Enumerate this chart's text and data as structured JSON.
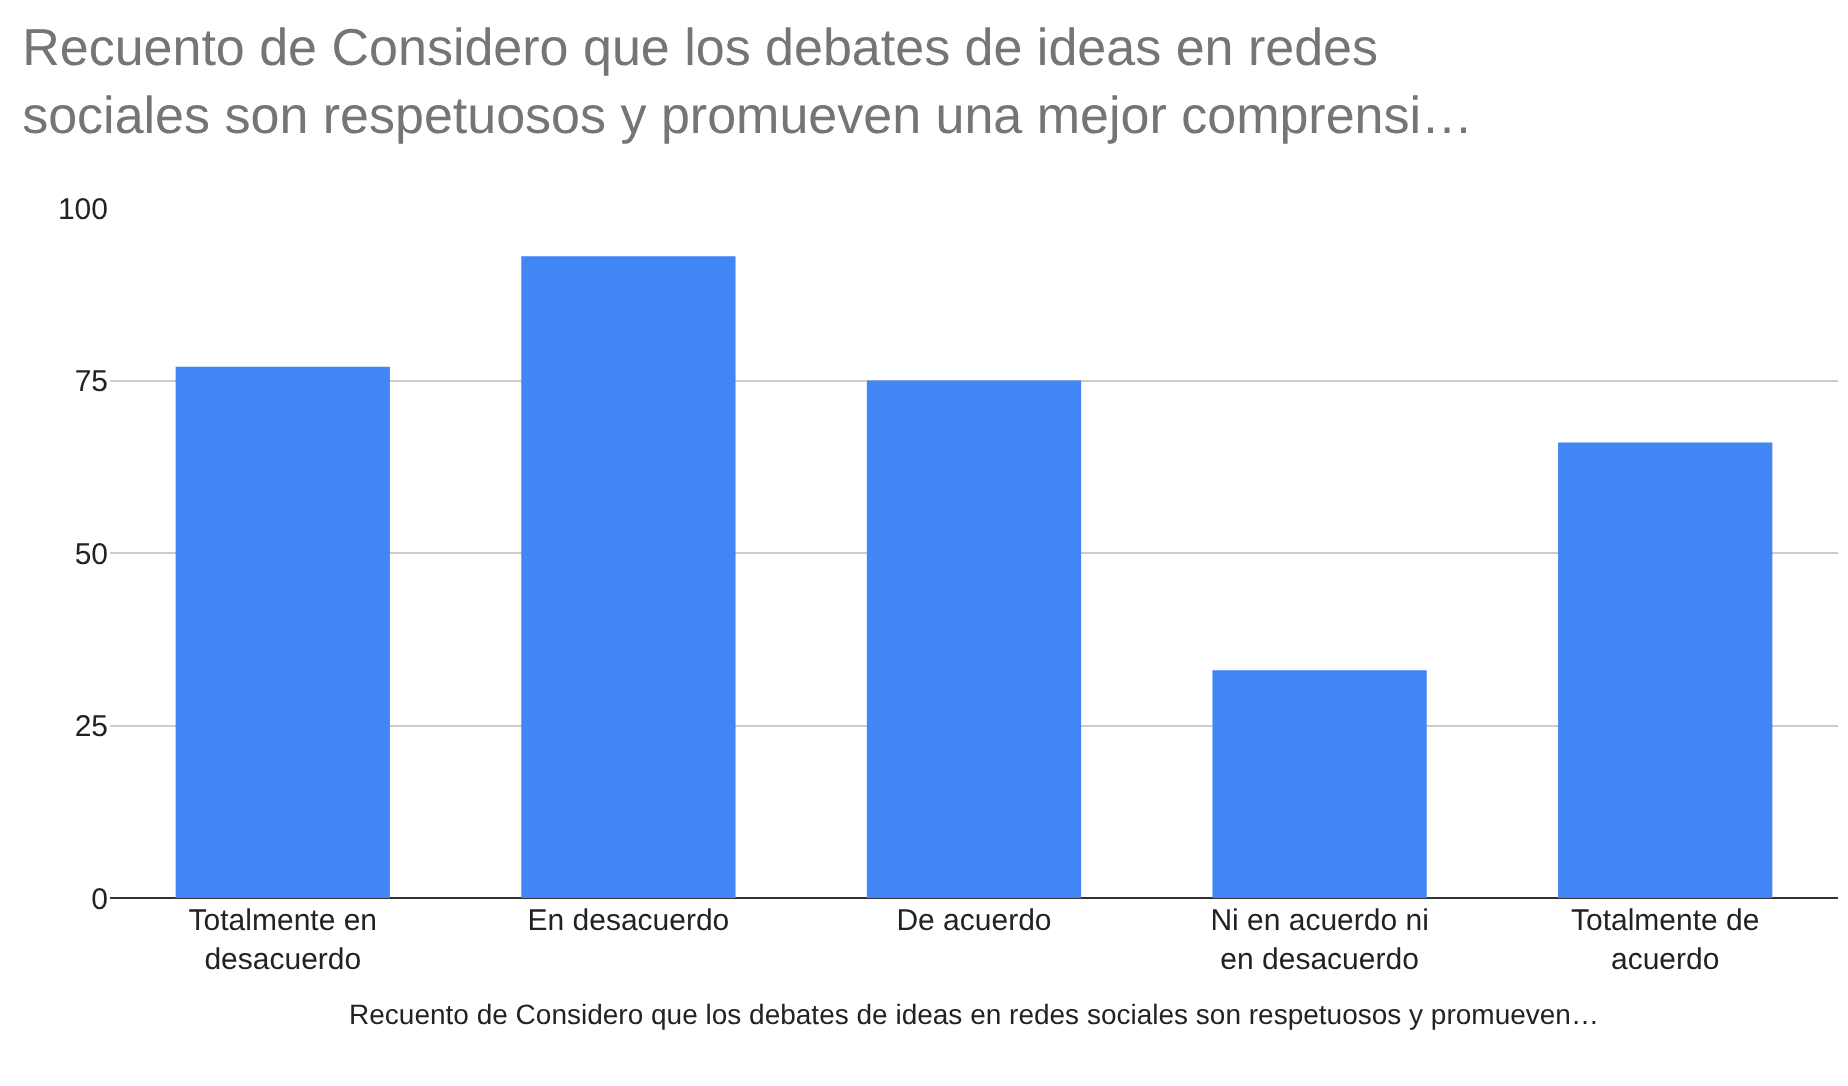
{
  "chart_data": {
    "type": "bar",
    "title": "Recuento de Considero que los debates de ideas en redes sociales son respetuosos y promueven una mejor comprensi…",
    "xlabel": "Recuento de Considero que los debates de ideas en redes sociales son respetuosos y promueven…",
    "categories": [
      "Totalmente en desacuerdo",
      "En desacuerdo",
      "De acuerdo",
      "Ni en acuerdo ni en desacuerdo",
      "Totalmente de acuerdo"
    ],
    "values": [
      77,
      93,
      75,
      33,
      66
    ],
    "color": "#4285f4",
    "ylim": [
      0,
      100
    ],
    "yticks": [
      0,
      25,
      50,
      75,
      100
    ],
    "grid": "y"
  }
}
